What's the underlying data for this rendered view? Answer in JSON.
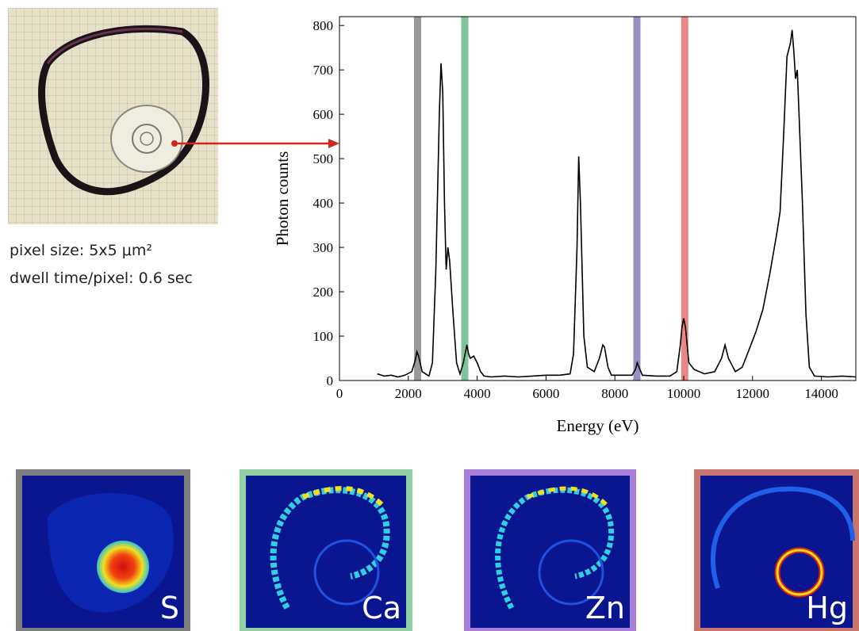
{
  "chart_data": {
    "type": "line",
    "xlabel": "Energy (eV)",
    "ylabel": "Photon counts",
    "xlim": [
      0,
      15000
    ],
    "ylim": [
      0,
      820
    ],
    "xticks": [
      0,
      2000,
      4000,
      6000,
      8000,
      10000,
      12000,
      14000
    ],
    "yticks": [
      0,
      100,
      200,
      300,
      400,
      500,
      600,
      700,
      800
    ],
    "color": "#000000",
    "x": [
      1100,
      1300,
      1500,
      1700,
      1900,
      2100,
      2200,
      2250,
      2300,
      2400,
      2500,
      2600,
      2700,
      2800,
      2900,
      2950,
      3000,
      3050,
      3100,
      3150,
      3200,
      3300,
      3400,
      3500,
      3600,
      3700,
      3750,
      3800,
      3900,
      4000,
      4100,
      4200,
      4400,
      4800,
      5200,
      5600,
      6000,
      6400,
      6700,
      6800,
      6900,
      6950,
      7000,
      7100,
      7200,
      7400,
      7550,
      7650,
      7700,
      7800,
      7900,
      8200,
      8500,
      8600,
      8650,
      8700,
      8800,
      9200,
      9600,
      9800,
      9900,
      9950,
      10000,
      10050,
      10150,
      10300,
      10600,
      10900,
      11100,
      11200,
      11300,
      11500,
      11700,
      11900,
      12100,
      12300,
      12500,
      12700,
      12800,
      12900,
      13000,
      13100,
      13150,
      13200,
      13250,
      13300,
      13350,
      13450,
      13550,
      13650,
      13800,
      14200,
      14600,
      15000
    ],
    "values": [
      15,
      10,
      12,
      8,
      12,
      20,
      45,
      65,
      55,
      20,
      15,
      10,
      40,
      250,
      600,
      715,
      650,
      400,
      250,
      300,
      270,
      150,
      40,
      15,
      40,
      80,
      60,
      50,
      55,
      40,
      20,
      10,
      8,
      10,
      8,
      10,
      12,
      12,
      15,
      60,
      300,
      505,
      400,
      100,
      30,
      20,
      50,
      80,
      75,
      30,
      12,
      12,
      12,
      25,
      40,
      30,
      12,
      10,
      10,
      20,
      80,
      120,
      140,
      120,
      40,
      25,
      15,
      20,
      50,
      80,
      50,
      20,
      30,
      70,
      110,
      160,
      240,
      330,
      380,
      550,
      730,
      760,
      790,
      740,
      680,
      700,
      600,
      400,
      150,
      30,
      10,
      8,
      10,
      8
    ],
    "bands": [
      {
        "value": 2270,
        "color": "#9a9a9a"
      },
      {
        "value": 3640,
        "color": "#7fc49b"
      },
      {
        "value": 8640,
        "color": "#9a8fc2"
      },
      {
        "value": 10030,
        "color": "#e88886"
      }
    ]
  },
  "image_caption": [
    "pixel size: 5x5 μm²",
    "dwell time/pixel: 0.6 sec"
  ],
  "maps": [
    {
      "label": "S",
      "color": "#7f7f7f"
    },
    {
      "label": "Ca",
      "color": "#92cfa6"
    },
    {
      "label": "Zn",
      "color": "#a87fd8"
    },
    {
      "label": "Hg",
      "color": "#c8756f"
    }
  ]
}
